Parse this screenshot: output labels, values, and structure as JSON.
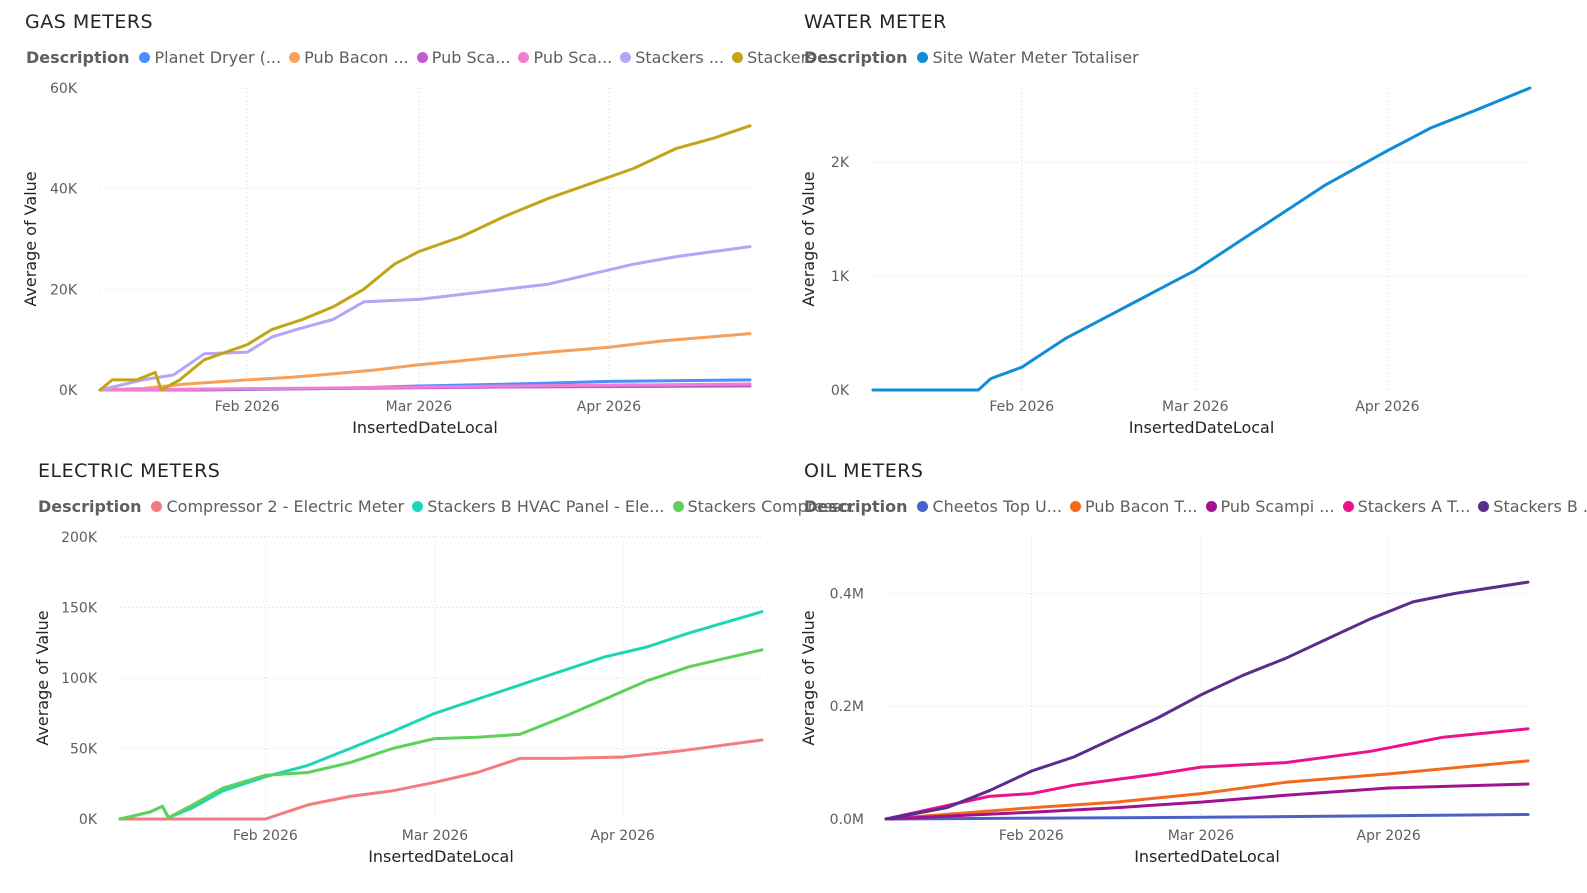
{
  "chart_data": [
    {
      "type": "line",
      "title": "GAS METERS",
      "legend_title": "Description",
      "xlabel": "InsertedDateLocal",
      "ylabel": "Average of Value",
      "xlim": [
        "2026-01-08",
        "2026-04-24"
      ],
      "ylim": [
        0,
        60000
      ],
      "yticks": [
        0,
        20000,
        40000,
        60000
      ],
      "ytick_labels": [
        "0K",
        "20K",
        "40K",
        "60K"
      ],
      "xticks": [
        "2026-02-01",
        "2026-03-01",
        "2026-04-01"
      ],
      "xtick_labels": [
        "Feb 2026",
        "Mar 2026",
        "Apr 2026"
      ],
      "grid": true,
      "legend_position": "top",
      "series": [
        {
          "name": "Planet Dryer (...",
          "color": "#4c8dff",
          "x": [
            "2026-01-08",
            "2026-01-25",
            "2026-02-15",
            "2026-03-01",
            "2026-03-20",
            "2026-04-01",
            "2026-04-24"
          ],
          "y": [
            0,
            0,
            300,
            800,
            1300,
            1700,
            2000
          ]
        },
        {
          "name": "Pub Bacon ...",
          "color": "#f7a05b",
          "x": [
            "2026-01-08",
            "2026-01-15",
            "2026-01-22",
            "2026-02-01",
            "2026-02-08",
            "2026-02-15",
            "2026-02-22",
            "2026-03-01",
            "2026-03-08",
            "2026-03-15",
            "2026-03-22",
            "2026-04-01",
            "2026-04-10",
            "2026-04-24"
          ],
          "y": [
            0,
            300,
            1200,
            2000,
            2500,
            3200,
            4000,
            5000,
            5800,
            6700,
            7500,
            8500,
            9800,
            11200
          ]
        },
        {
          "name": "Pub Sca...",
          "color": "#c45ad1",
          "x": [
            "2026-01-08",
            "2026-02-15",
            "2026-03-15",
            "2026-04-24"
          ],
          "y": [
            0,
            300,
            600,
            800
          ]
        },
        {
          "name": "Pub Sca...",
          "color": "#f07ed2",
          "x": [
            "2026-01-08",
            "2026-02-15",
            "2026-03-15",
            "2026-04-24"
          ],
          "y": [
            0,
            400,
            800,
            1200
          ]
        },
        {
          "name": "Stackers ...",
          "color": "#b6a5f5",
          "x": [
            "2026-01-08",
            "2026-01-15",
            "2026-01-20",
            "2026-01-25",
            "2026-02-01",
            "2026-02-05",
            "2026-02-09",
            "2026-02-15",
            "2026-02-20",
            "2026-02-25",
            "2026-03-01",
            "2026-03-08",
            "2026-03-15",
            "2026-03-22",
            "2026-03-29",
            "2026-04-05",
            "2026-04-12",
            "2026-04-24"
          ],
          "y": [
            0,
            2000,
            3000,
            7200,
            7500,
            10500,
            12000,
            14000,
            17500,
            17800,
            18000,
            19000,
            20000,
            21000,
            23000,
            25000,
            26500,
            28500
          ]
        },
        {
          "name": "Stackers ...",
          "color": "#c2a517",
          "x": [
            "2026-01-08",
            "2026-01-10",
            "2026-01-14",
            "2026-01-17",
            "2026-01-18",
            "2026-01-21",
            "2026-01-25",
            "2026-02-01",
            "2026-02-05",
            "2026-02-10",
            "2026-02-15",
            "2026-02-20",
            "2026-02-25",
            "2026-03-01",
            "2026-03-08",
            "2026-03-15",
            "2026-03-22",
            "2026-03-29",
            "2026-04-05",
            "2026-04-12",
            "2026-04-18",
            "2026-04-24"
          ],
          "y": [
            0,
            2000,
            2000,
            3500,
            0,
            2000,
            6000,
            9000,
            12000,
            14000,
            16500,
            20000,
            25000,
            27500,
            30500,
            34500,
            38000,
            41000,
            44000,
            48000,
            50000,
            52500
          ]
        }
      ]
    },
    {
      "type": "line",
      "title": "WATER METER",
      "legend_title": "Description",
      "xlabel": "InsertedDateLocal",
      "ylabel": "Average of Value",
      "xlim": [
        "2026-01-08",
        "2026-04-24"
      ],
      "ylim": [
        0,
        2650
      ],
      "yticks": [
        0,
        1000,
        2000
      ],
      "ytick_labels": [
        "0K",
        "1K",
        "2K"
      ],
      "xticks": [
        "2026-02-01",
        "2026-03-01",
        "2026-04-01"
      ],
      "xtick_labels": [
        "Feb 2026",
        "Mar 2026",
        "Apr 2026"
      ],
      "grid": true,
      "legend_position": "top",
      "series": [
        {
          "name": "Site Water Meter Totaliser",
          "color": "#118dd5",
          "x": [
            "2026-01-08",
            "2026-01-25",
            "2026-01-27",
            "2026-02-01",
            "2026-02-08",
            "2026-02-15",
            "2026-02-22",
            "2026-03-01",
            "2026-03-08",
            "2026-03-15",
            "2026-03-22",
            "2026-04-01",
            "2026-04-08",
            "2026-04-15",
            "2026-04-24"
          ],
          "y": [
            0,
            0,
            100,
            200,
            450,
            650,
            850,
            1050,
            1300,
            1550,
            1800,
            2100,
            2300,
            2450,
            2650
          ]
        }
      ]
    },
    {
      "type": "line",
      "title": "ELECTRIC METERS",
      "legend_title": "Description",
      "xlabel": "InsertedDateLocal",
      "ylabel": "Average of Value",
      "xlim": [
        "2026-01-08",
        "2026-04-24"
      ],
      "ylim": [
        0,
        200000
      ],
      "yticks": [
        0,
        50000,
        100000,
        150000,
        200000
      ],
      "ytick_labels": [
        "0K",
        "50K",
        "100K",
        "150K",
        "200K"
      ],
      "xticks": [
        "2026-02-01",
        "2026-03-01",
        "2026-04-01"
      ],
      "xtick_labels": [
        "Feb 2026",
        "Mar 2026",
        "Apr 2026"
      ],
      "grid": true,
      "legend_position": "top",
      "series": [
        {
          "name": "Compressor 2 - Electric Meter",
          "color": "#f47c7c",
          "x": [
            "2026-01-08",
            "2026-02-01",
            "2026-02-08",
            "2026-02-15",
            "2026-02-22",
            "2026-03-01",
            "2026-03-08",
            "2026-03-15",
            "2026-03-22",
            "2026-04-01",
            "2026-04-10",
            "2026-04-24"
          ],
          "y": [
            0,
            0,
            10000,
            16000,
            20000,
            26000,
            33000,
            43000,
            43000,
            44000,
            48000,
            56000
          ]
        },
        {
          "name": "Stackers B HVAC Panel - Ele...",
          "color": "#1dd6b7",
          "x": [
            "2026-01-08",
            "2026-01-13",
            "2026-01-15",
            "2026-01-16",
            "2026-01-20",
            "2026-01-25",
            "2026-02-01",
            "2026-02-08",
            "2026-02-15",
            "2026-02-22",
            "2026-03-01",
            "2026-03-08",
            "2026-03-15",
            "2026-03-22",
            "2026-03-29",
            "2026-04-05",
            "2026-04-12",
            "2026-04-24"
          ],
          "y": [
            0,
            5000,
            9000,
            1000,
            8000,
            20000,
            30000,
            38000,
            50000,
            62000,
            75000,
            85000,
            95000,
            105000,
            115000,
            122000,
            132000,
            147000
          ]
        },
        {
          "name": "Stackers Compresso...",
          "color": "#5dd159",
          "x": [
            "2026-01-08",
            "2026-01-13",
            "2026-01-15",
            "2026-01-16",
            "2026-01-20",
            "2026-01-25",
            "2026-02-01",
            "2026-02-08",
            "2026-02-15",
            "2026-02-22",
            "2026-03-01",
            "2026-03-08",
            "2026-03-15",
            "2026-03-22",
            "2026-03-29",
            "2026-04-05",
            "2026-04-12",
            "2026-04-24"
          ],
          "y": [
            0,
            5000,
            9000,
            1000,
            10000,
            22000,
            31000,
            33000,
            40000,
            50000,
            57000,
            58000,
            60000,
            72000,
            85000,
            98000,
            108000,
            120000
          ]
        }
      ]
    },
    {
      "type": "line",
      "title": "OIL METERS",
      "legend_title": "Description",
      "xlabel": "InsertedDateLocal",
      "ylabel": "Average of Value",
      "xlim": [
        "2026-01-08",
        "2026-04-24"
      ],
      "ylim": [
        0,
        500000
      ],
      "yticks": [
        0,
        200000,
        400000
      ],
      "ytick_labels": [
        "0.0M",
        "0.2M",
        "0.4M"
      ],
      "xticks": [
        "2026-02-01",
        "2026-03-01",
        "2026-04-01"
      ],
      "xtick_labels": [
        "Feb 2026",
        "Mar 2026",
        "Apr 2026"
      ],
      "grid": true,
      "legend_position": "top",
      "series": [
        {
          "name": "Cheetos Top U...",
          "color": "#4c61c8",
          "x": [
            "2026-01-08",
            "2026-03-01",
            "2026-04-24"
          ],
          "y": [
            0,
            3000,
            8000
          ]
        },
        {
          "name": "Pub Bacon T...",
          "color": "#f26b1d",
          "x": [
            "2026-01-08",
            "2026-01-20",
            "2026-02-01",
            "2026-02-15",
            "2026-03-01",
            "2026-03-15",
            "2026-04-01",
            "2026-04-24"
          ],
          "y": [
            0,
            10000,
            20000,
            30000,
            45000,
            65000,
            80000,
            103000
          ]
        },
        {
          "name": "Pub Scampi ...",
          "color": "#a0128f",
          "x": [
            "2026-01-08",
            "2026-02-01",
            "2026-02-15",
            "2026-03-01",
            "2026-03-15",
            "2026-04-01",
            "2026-04-24"
          ],
          "y": [
            0,
            12000,
            20000,
            30000,
            42000,
            55000,
            62000
          ]
        },
        {
          "name": "Stackers A T...",
          "color": "#ec128e",
          "x": [
            "2026-01-08",
            "2026-01-25",
            "2026-02-01",
            "2026-02-08",
            "2026-02-15",
            "2026-02-22",
            "2026-03-01",
            "2026-03-15",
            "2026-03-29",
            "2026-04-10",
            "2026-04-24"
          ],
          "y": [
            0,
            40000,
            45000,
            60000,
            70000,
            80000,
            92000,
            100000,
            120000,
            145000,
            160000
          ]
        },
        {
          "name": "Stackers B ...",
          "color": "#5a2d8c",
          "x": [
            "2026-01-08",
            "2026-01-13",
            "2026-01-18",
            "2026-01-25",
            "2026-02-01",
            "2026-02-08",
            "2026-02-15",
            "2026-02-22",
            "2026-03-01",
            "2026-03-08",
            "2026-03-15",
            "2026-03-22",
            "2026-03-29",
            "2026-04-05",
            "2026-04-12",
            "2026-04-24"
          ],
          "y": [
            0,
            10000,
            20000,
            50000,
            85000,
            110000,
            145000,
            180000,
            220000,
            255000,
            285000,
            320000,
            355000,
            385000,
            400000,
            420000
          ]
        }
      ]
    }
  ]
}
